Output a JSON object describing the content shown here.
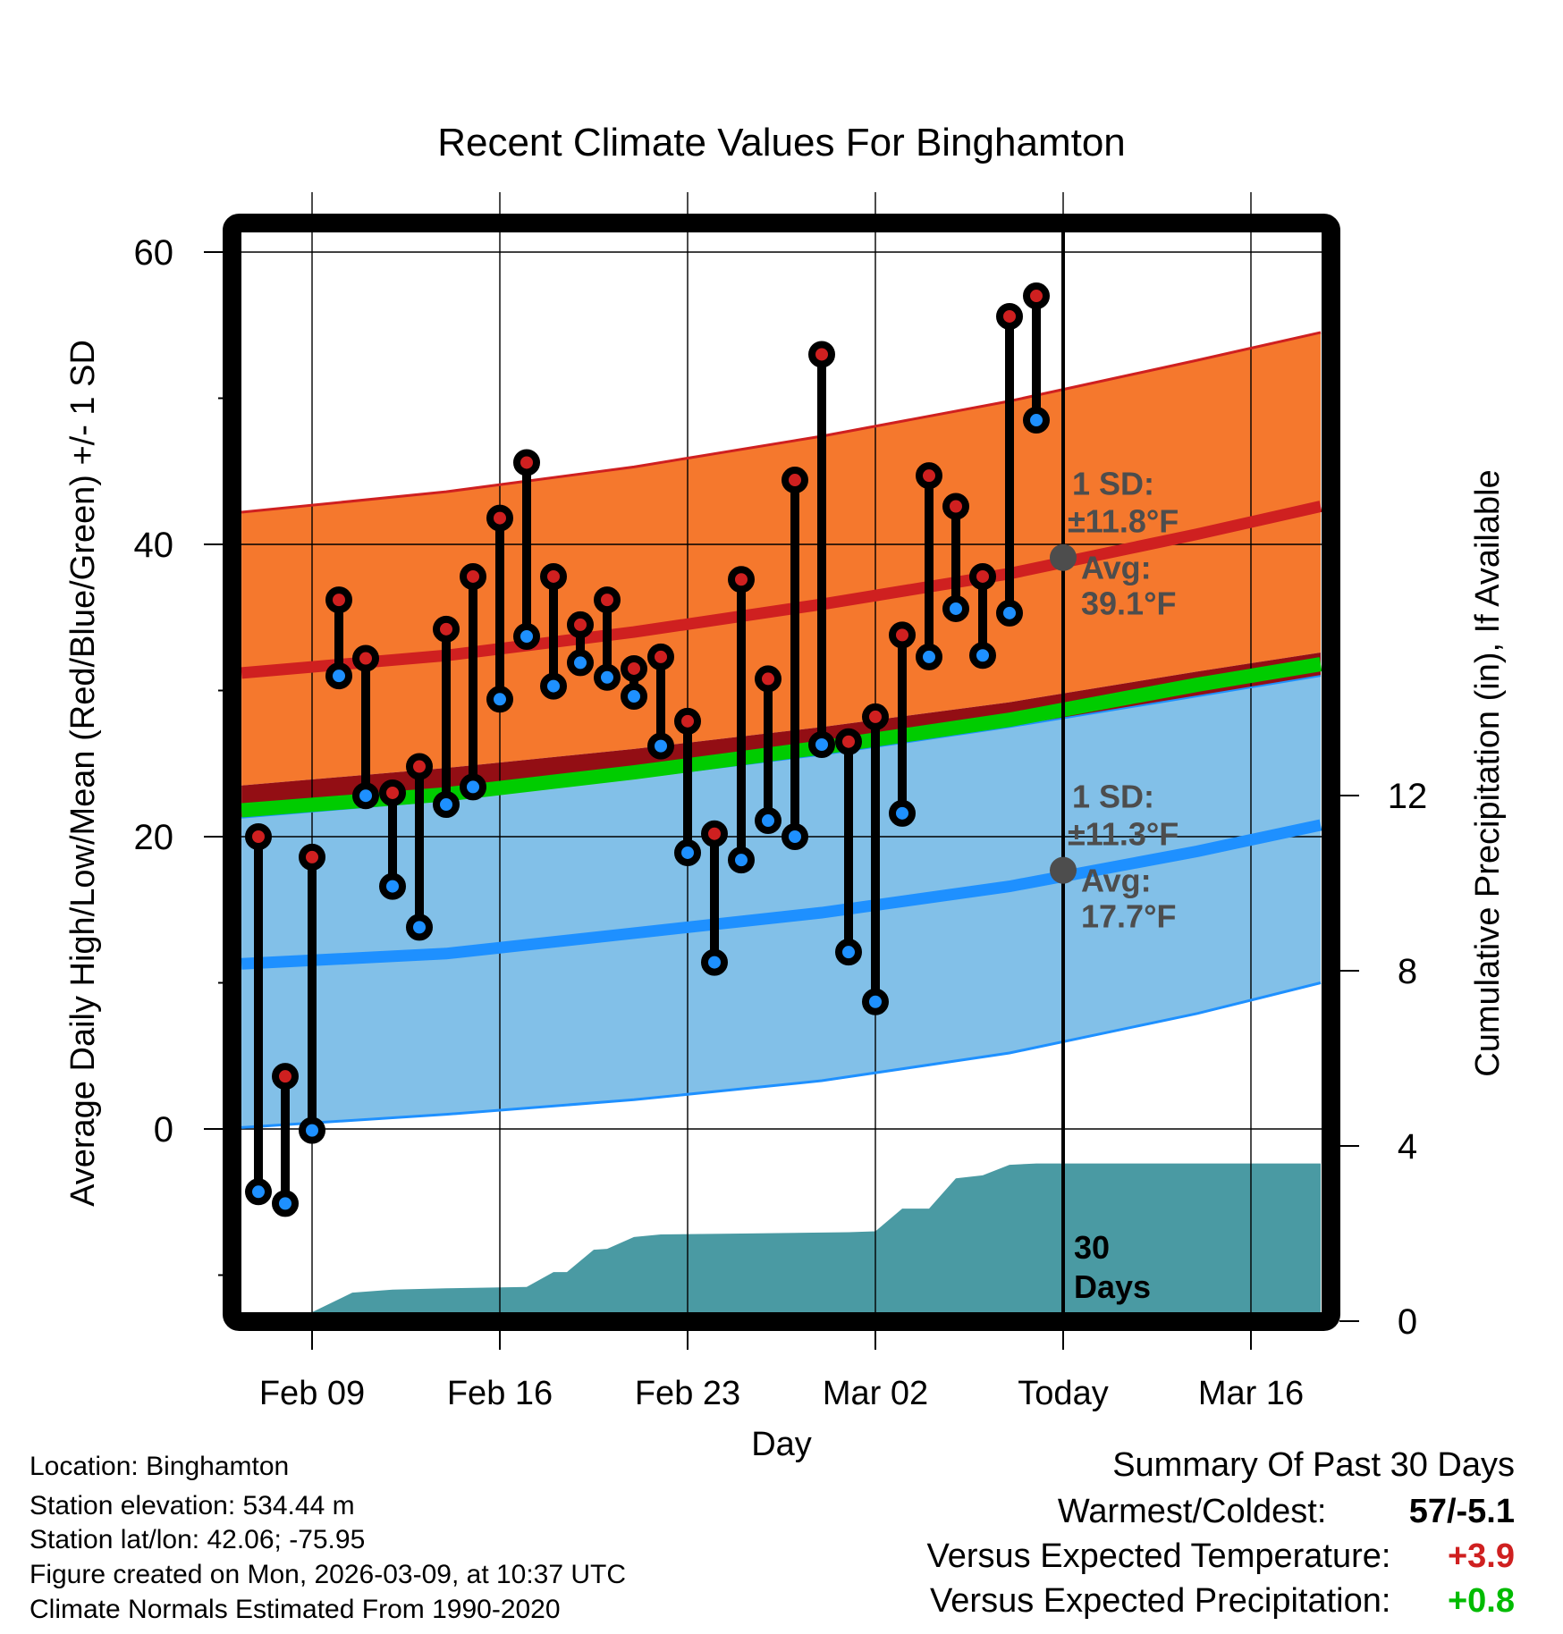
{
  "chart_data": {
    "type": "line",
    "title": "Recent Climate Values For Binghamton",
    "xlabel": "Day",
    "ylabel": "Average Daily High/Low/Mean (Red/Blue/Green) +/- 1 SD",
    "y2label": "Cumulative Precipitation (in), If Available",
    "ylim": [
      -12.5,
      61.4
    ],
    "y_ticks": [
      0,
      20,
      40,
      60
    ],
    "y_minor_ticks": [
      -10,
      10,
      30,
      50
    ],
    "y2lim": [
      0,
      15
    ],
    "y2_ticks": [
      0,
      4,
      8,
      12
    ],
    "x_range_days_from_feb09": [
      -2.63,
      37.6
    ],
    "x_ticks": [
      {
        "label": "Feb 09",
        "day": 0
      },
      {
        "label": "Feb 16",
        "day": 7
      },
      {
        "label": "Feb 23",
        "day": 14
      },
      {
        "label": "Mar 02",
        "day": 21
      },
      {
        "label": "Today",
        "day": 28
      },
      {
        "label": "Mar 16",
        "day": 35
      }
    ],
    "grid": true,
    "today_day": 28,
    "today_label": [
      "30",
      "Days"
    ],
    "normals": {
      "days": [
        -2.63,
        5,
        12,
        19,
        26,
        33,
        37.6
      ],
      "high_plus_sd": [
        42.2,
        43.6,
        45.3,
        47.4,
        49.8,
        52.6,
        54.5
      ],
      "high_mean": [
        31.2,
        32.4,
        34.0,
        35.9,
        38.0,
        40.7,
        42.6
      ],
      "high_minus_sd": [
        23.5,
        24.7,
        26.0,
        27.5,
        29.2,
        31.3,
        32.6
      ],
      "mean": [
        21.8,
        22.9,
        24.4,
        26.1,
        28.0,
        30.4,
        31.8
      ],
      "low_plus_sd": [
        21.3,
        22.5,
        24.0,
        25.6,
        27.5,
        29.6,
        31.0
      ],
      "low_mean": [
        11.3,
        12.0,
        13.4,
        14.8,
        16.6,
        19.0,
        20.8
      ],
      "low_minus_sd": [
        0.1,
        1.0,
        2.0,
        3.3,
        5.2,
        7.9,
        10.0
      ]
    },
    "annotations": {
      "high": {
        "sd_label": "1 SD:",
        "sd_value": "±11.8°F",
        "avg_label": "Avg:",
        "avg_value": "39.1°F",
        "avg": 39.1
      },
      "low": {
        "sd_label": "1 SD:",
        "sd_value": "±11.3°F",
        "avg_label": "Avg:",
        "avg_value": "17.7°F",
        "avg": 17.7
      }
    },
    "daily": [
      {
        "date": "Feb 07",
        "day": -2,
        "high": 20.0,
        "low": -4.3
      },
      {
        "date": "Feb 08",
        "day": -1,
        "high": 3.6,
        "low": -5.1
      },
      {
        "date": "Feb 09",
        "day": 0,
        "high": 18.6,
        "low": -0.1
      },
      {
        "date": "Feb 10",
        "day": 1,
        "high": 36.2,
        "low": 31.0
      },
      {
        "date": "Feb 11",
        "day": 2,
        "high": 32.2,
        "low": 22.8
      },
      {
        "date": "Feb 12",
        "day": 3,
        "high": 23.0,
        "low": 16.6
      },
      {
        "date": "Feb 13",
        "day": 4,
        "high": 24.8,
        "low": 13.8
      },
      {
        "date": "Feb 14",
        "day": 5,
        "high": 34.2,
        "low": 22.2
      },
      {
        "date": "Feb 15",
        "day": 6,
        "high": 37.8,
        "low": 23.4
      },
      {
        "date": "Feb 16",
        "day": 7,
        "high": 41.8,
        "low": 29.4
      },
      {
        "date": "Feb 17",
        "day": 8,
        "high": 45.6,
        "low": 33.7
      },
      {
        "date": "Feb 18",
        "day": 9,
        "high": 37.8,
        "low": 30.3
      },
      {
        "date": "Feb 19",
        "day": 10,
        "high": 34.5,
        "low": 31.9
      },
      {
        "date": "Feb 20",
        "day": 11,
        "high": 36.2,
        "low": 30.9
      },
      {
        "date": "Feb 21",
        "day": 12,
        "high": 31.5,
        "low": 29.6
      },
      {
        "date": "Feb 22",
        "day": 13,
        "high": 32.3,
        "low": 26.2
      },
      {
        "date": "Feb 23",
        "day": 14,
        "high": 27.9,
        "low": 18.9
      },
      {
        "date": "Feb 24",
        "day": 15,
        "high": 20.2,
        "low": 11.4
      },
      {
        "date": "Feb 25",
        "day": 16,
        "high": 37.6,
        "low": 18.4
      },
      {
        "date": "Feb 26",
        "day": 17,
        "high": 30.8,
        "low": 21.1
      },
      {
        "date": "Feb 27",
        "day": 18,
        "high": 44.4,
        "low": 20.0
      },
      {
        "date": "Feb 28",
        "day": 19,
        "high": 53.0,
        "low": 26.3
      },
      {
        "date": "Mar 01",
        "day": 20,
        "high": 26.5,
        "low": 12.1
      },
      {
        "date": "Mar 02",
        "day": 21,
        "high": 28.2,
        "low": 8.7
      },
      {
        "date": "Mar 03",
        "day": 22,
        "high": 33.8,
        "low": 21.6
      },
      {
        "date": "Mar 04",
        "day": 23,
        "high": 44.7,
        "low": 32.3
      },
      {
        "date": "Mar 05",
        "day": 24,
        "high": 42.6,
        "low": 35.6
      },
      {
        "date": "Mar 06",
        "day": 25,
        "high": 37.8,
        "low": 32.4
      },
      {
        "date": "Mar 07",
        "day": 26,
        "high": 55.6,
        "low": 35.3
      },
      {
        "date": "Mar 08",
        "day": 27,
        "high": 57.0,
        "low": 48.5
      }
    ],
    "precip_cumulative": {
      "days": [
        0,
        1.5,
        3,
        5,
        8,
        9,
        9.5,
        10.5,
        11,
        12,
        13,
        16,
        20,
        21,
        22,
        23,
        24,
        25,
        26,
        27,
        28,
        37.6
      ],
      "values": [
        0,
        0.65,
        0.72,
        0.75,
        0.78,
        1.12,
        1.12,
        1.63,
        1.65,
        1.92,
        1.98,
        2.0,
        2.03,
        2.05,
        2.57,
        2.57,
        3.26,
        3.33,
        3.57,
        3.6,
        3.6,
        3.6
      ]
    },
    "colors": {
      "high_band": "#f5782d",
      "high_line": "#cf2020",
      "low_band": "#82c0e8",
      "low_line": "#1e90ff",
      "overlap_band": "#930e14",
      "mean_line": "#00cc00",
      "precip": "#4a9aa3",
      "high_marker": "#cf2020",
      "low_marker": "#1e90ff",
      "annotation_text": "#4d4d4d"
    }
  },
  "footer": {
    "location": "Location: Binghamton",
    "elevation": "Station elevation: 534.44 m",
    "latlon": "Station lat/lon: 42.06; -75.95",
    "created": "Figure created on Mon, 2026-03-09, at 10:37 UTC",
    "normals": "Climate Normals Estimated From 1990-2020"
  },
  "summary": {
    "title": "Summary Of Past 30 Days",
    "warmest_coldest_label": "Warmest/Coldest:",
    "warmest_coldest_value": "57/-5.1",
    "temp_label": "Versus Expected Temperature:",
    "temp_value": "+3.9",
    "temp_color": "#cf2020",
    "precip_label": "Versus Expected Precipitation:",
    "precip_value": "+0.8",
    "precip_color": "#00bb00"
  }
}
